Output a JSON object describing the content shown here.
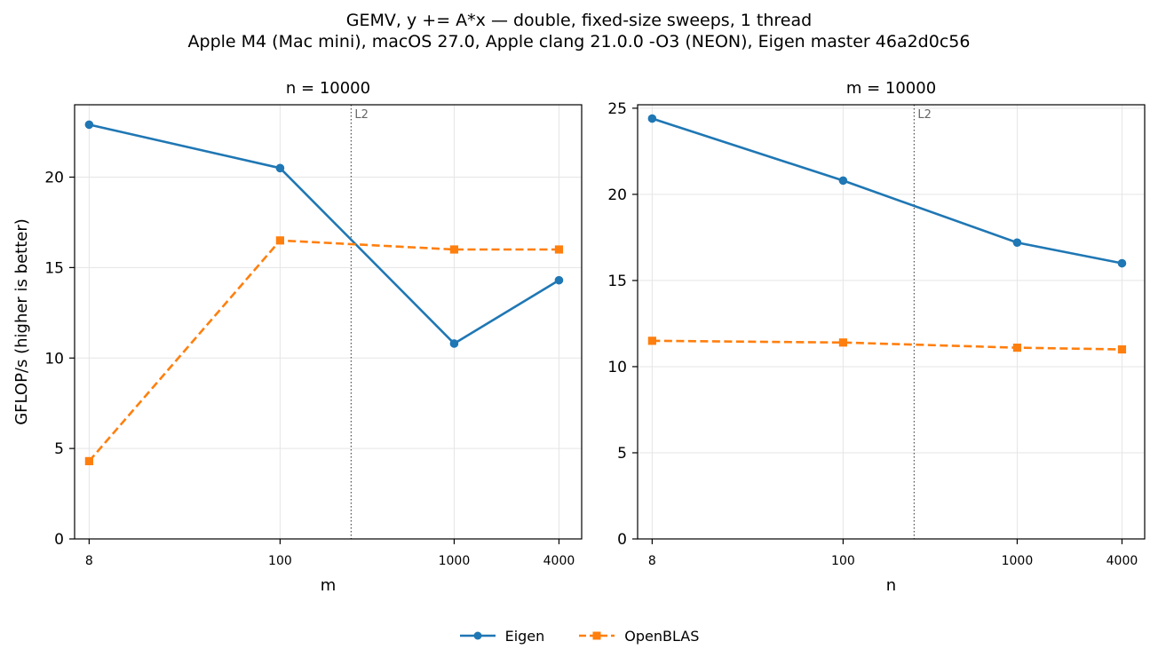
{
  "figure": {
    "suptitle_line1": "GEMV, y += A*x — double, fixed-size sweeps, 1 thread",
    "suptitle_line2": "Apple M4 (Mac mini), macOS 27.0, Apple clang 21.0.0 -O3 (NEON), Eigen master 46a2d0c56"
  },
  "colors": {
    "eigen": "#1f77b4",
    "openblas": "#ff7f0e",
    "grid": "#e5e5e5",
    "marker_line": "#555555"
  },
  "legend": {
    "placement": "bottom-center",
    "items": [
      "Eigen",
      "OpenBLAS"
    ]
  },
  "chart_data": [
    {
      "type": "line",
      "title": "n = 10000",
      "xlabel": "m",
      "ylabel": "GFLOP/s (higher is better)",
      "xscale": "log",
      "x": [
        8,
        100,
        1000,
        4000
      ],
      "x_tick_labels": [
        "8",
        "100",
        "1000",
        "4000"
      ],
      "ylim": [
        0,
        24
      ],
      "y_ticks": [
        0,
        5,
        10,
        15,
        20
      ],
      "grid": true,
      "series": [
        {
          "name": "Eigen",
          "values": [
            22.9,
            20.5,
            10.8,
            14.3
          ],
          "style": "solid",
          "marker": "circle"
        },
        {
          "name": "OpenBLAS",
          "values": [
            4.3,
            16.5,
            16.0,
            16.0
          ],
          "style": "dashed",
          "marker": "square"
        }
      ],
      "vline": {
        "x": 256,
        "label": "L2",
        "style": "dotted"
      }
    },
    {
      "type": "line",
      "title": "m = 10000",
      "xlabel": "n",
      "ylabel": "",
      "xscale": "log",
      "x": [
        8,
        100,
        1000,
        4000
      ],
      "x_tick_labels": [
        "8",
        "100",
        "1000",
        "4000"
      ],
      "ylim": [
        0,
        25.2
      ],
      "y_ticks": [
        0,
        5,
        10,
        15,
        20,
        25
      ],
      "grid": true,
      "series": [
        {
          "name": "Eigen",
          "values": [
            24.4,
            20.8,
            17.2,
            16.0
          ],
          "style": "solid",
          "marker": "circle"
        },
        {
          "name": "OpenBLAS",
          "values": [
            11.5,
            11.4,
            11.1,
            11.0
          ],
          "style": "dashed",
          "marker": "square"
        }
      ],
      "vline": {
        "x": 256,
        "label": "L2",
        "style": "dotted"
      }
    }
  ]
}
